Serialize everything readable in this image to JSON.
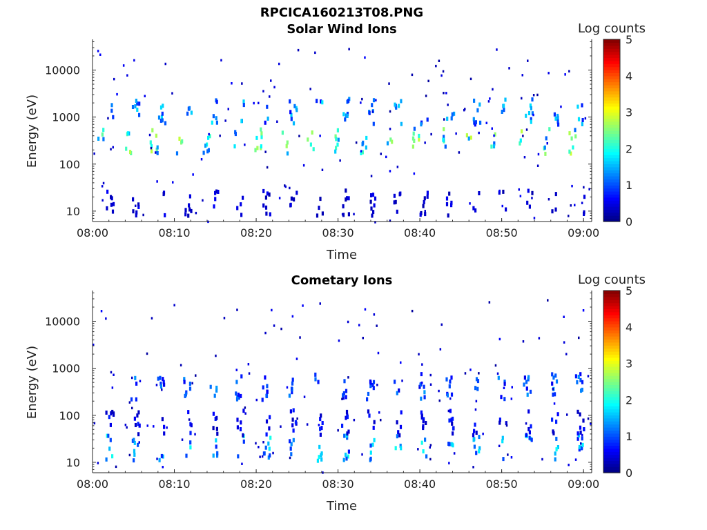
{
  "figure_title": "RPCICA160213T08.PNG",
  "chart_data": [
    {
      "type": "heatmap",
      "title": "Solar Wind Ions",
      "xlabel": "Time",
      "ylabel": "Energy (eV)",
      "x_ticks": [
        "08:00",
        "08:10",
        "08:20",
        "08:30",
        "08:40",
        "08:50",
        "09:00"
      ],
      "xlim": [
        "08:00",
        "09:01"
      ],
      "y_scale": "log",
      "y_ticks": [
        10,
        100,
        1000,
        10000
      ],
      "y_tick_labels": [
        "10",
        "100",
        "1000",
        "10000"
      ],
      "ylim": [
        6,
        45000
      ],
      "colorbar": {
        "label": "Log counts",
        "ticks": [
          "0",
          "1",
          "2",
          "3",
          "4",
          "5"
        ],
        "range": [
          0,
          5
        ],
        "colormap": "jet"
      },
      "features": [
        {
          "name": "solar-wind-band",
          "energy_center": 1300,
          "log_counts_peak": 1.8,
          "period_min": 3.2,
          "start": "08:02"
        },
        {
          "name": "mid-energy-bursts",
          "energy_center": 300,
          "log_counts_peak": 2.9,
          "period_min": 3.2,
          "start": "08:01"
        },
        {
          "name": "low-energy-streaks",
          "energy_center": 15,
          "log_counts_peak": 0.6,
          "period_min": 3.2,
          "start": "08:02"
        }
      ]
    },
    {
      "type": "heatmap",
      "title": "Cometary Ions",
      "xlabel": "Time",
      "ylabel": "Energy (eV)",
      "x_ticks": [
        "08:00",
        "08:10",
        "08:20",
        "08:30",
        "08:40",
        "08:50",
        "09:00"
      ],
      "xlim": [
        "08:00",
        "09:01"
      ],
      "y_scale": "log",
      "y_ticks": [
        10,
        100,
        1000,
        10000
      ],
      "y_tick_labels": [
        "10",
        "100",
        "1000",
        "10000"
      ],
      "ylim": [
        6,
        45000
      ],
      "colorbar": {
        "label": "Log counts",
        "ticks": [
          "0",
          "1",
          "2",
          "3",
          "4",
          "5"
        ],
        "range": [
          0,
          5
        ],
        "colormap": "jet"
      },
      "features": [
        {
          "name": "cometary-low-energy-bursts",
          "energy_center": 20,
          "log_counts_peak": 2.0,
          "period_min": 3.2,
          "start": "08:02"
        },
        {
          "name": "mid-energy-spikes",
          "energy_center": 70,
          "log_counts_peak": 0.8,
          "period_min": 3.2,
          "start": "08:02"
        },
        {
          "name": "high-energy-sparse",
          "energy_center": 400,
          "log_counts_peak": 1.4,
          "period_min": 3.2,
          "start": "08:05"
        }
      ]
    }
  ]
}
